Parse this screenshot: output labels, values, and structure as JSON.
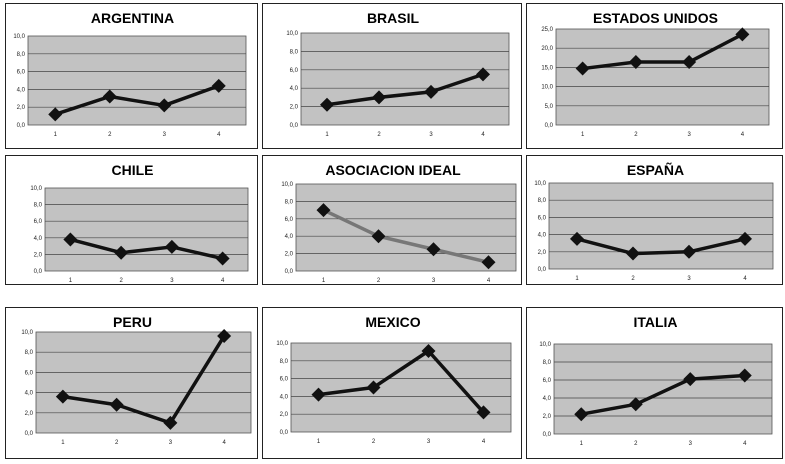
{
  "chart_data": [
    {
      "type": "line",
      "title": "ARGENTINA",
      "categories": [
        "1",
        "2",
        "3",
        "4"
      ],
      "values": [
        1.2,
        3.2,
        2.2,
        4.4
      ],
      "ylim": [
        0,
        10
      ],
      "yticks": [
        "0,0",
        "2,0",
        "4,0",
        "6,0",
        "8,0",
        "10,0"
      ],
      "grid": true
    },
    {
      "type": "line",
      "title": "BRASIL",
      "categories": [
        "1",
        "2",
        "3",
        "4"
      ],
      "values": [
        2.2,
        3.0,
        3.6,
        5.5
      ],
      "ylim": [
        0,
        10
      ],
      "yticks": [
        "0,0",
        "2,0",
        "4,0",
        "6,0",
        "8,0",
        "10,0"
      ],
      "grid": true
    },
    {
      "type": "line",
      "title": "ESTADOS UNIDOS",
      "categories": [
        "1",
        "2",
        "3",
        "4"
      ],
      "values": [
        14.7,
        16.4,
        16.4,
        23.6
      ],
      "ylim": [
        0,
        25
      ],
      "yticks": [
        "0,0",
        "5,0",
        "10,0",
        "15,0",
        "20,0",
        "25,0"
      ],
      "grid": true
    },
    {
      "type": "line",
      "title": "CHILE",
      "categories": [
        "1",
        "2",
        "3",
        "4"
      ],
      "values": [
        3.8,
        2.2,
        2.9,
        1.5
      ],
      "ylim": [
        0,
        10
      ],
      "yticks": [
        "0,0",
        "2,0",
        "4,0",
        "6,0",
        "8,0",
        "10,0"
      ],
      "grid": true
    },
    {
      "type": "line",
      "title": "ASOCIACION IDEAL",
      "categories": [
        "1",
        "2",
        "3",
        "4"
      ],
      "values": [
        7.0,
        4.0,
        2.5,
        1.0
      ],
      "ylim": [
        0,
        10
      ],
      "yticks": [
        "0,0",
        "2,0",
        "4,0",
        "6,0",
        "8,0",
        "10,0"
      ],
      "grid": true,
      "line_color": "#777777"
    },
    {
      "type": "line",
      "title": "ESPAÑA",
      "categories": [
        "1",
        "2",
        "3",
        "4"
      ],
      "values": [
        3.5,
        1.8,
        2.0,
        3.5
      ],
      "ylim": [
        0,
        10
      ],
      "yticks": [
        "0,0",
        "2,0",
        "4,0",
        "6,0",
        "8,0",
        "10,0"
      ],
      "grid": true
    },
    {
      "type": "line",
      "title": "PERU",
      "categories": [
        "1",
        "2",
        "3",
        "4"
      ],
      "values": [
        3.6,
        2.8,
        1.0,
        9.6
      ],
      "ylim": [
        0,
        10
      ],
      "yticks": [
        "0,0",
        "2,0",
        "4,0",
        "6,0",
        "8,0",
        "10,0"
      ],
      "grid": true
    },
    {
      "type": "line",
      "title": "MEXICO",
      "categories": [
        "1",
        "2",
        "3",
        "4"
      ],
      "values": [
        4.2,
        5.0,
        9.1,
        2.2
      ],
      "ylim": [
        0,
        10
      ],
      "yticks": [
        "0,0",
        "2,0",
        "4,0",
        "6,0",
        "8,0",
        "10,0"
      ],
      "grid": true
    },
    {
      "type": "line",
      "title": "ITALIA",
      "categories": [
        "1",
        "2",
        "3",
        "4"
      ],
      "values": [
        2.2,
        3.3,
        6.1,
        6.5
      ],
      "ylim": [
        0,
        10
      ],
      "yticks": [
        "0,0",
        "2,0",
        "4,0",
        "6,0",
        "8,0",
        "10,0"
      ],
      "grid": true
    }
  ],
  "colors": {
    "plot_bg": "#c2c2c2",
    "gridline": "#444444",
    "line": "#111111"
  }
}
